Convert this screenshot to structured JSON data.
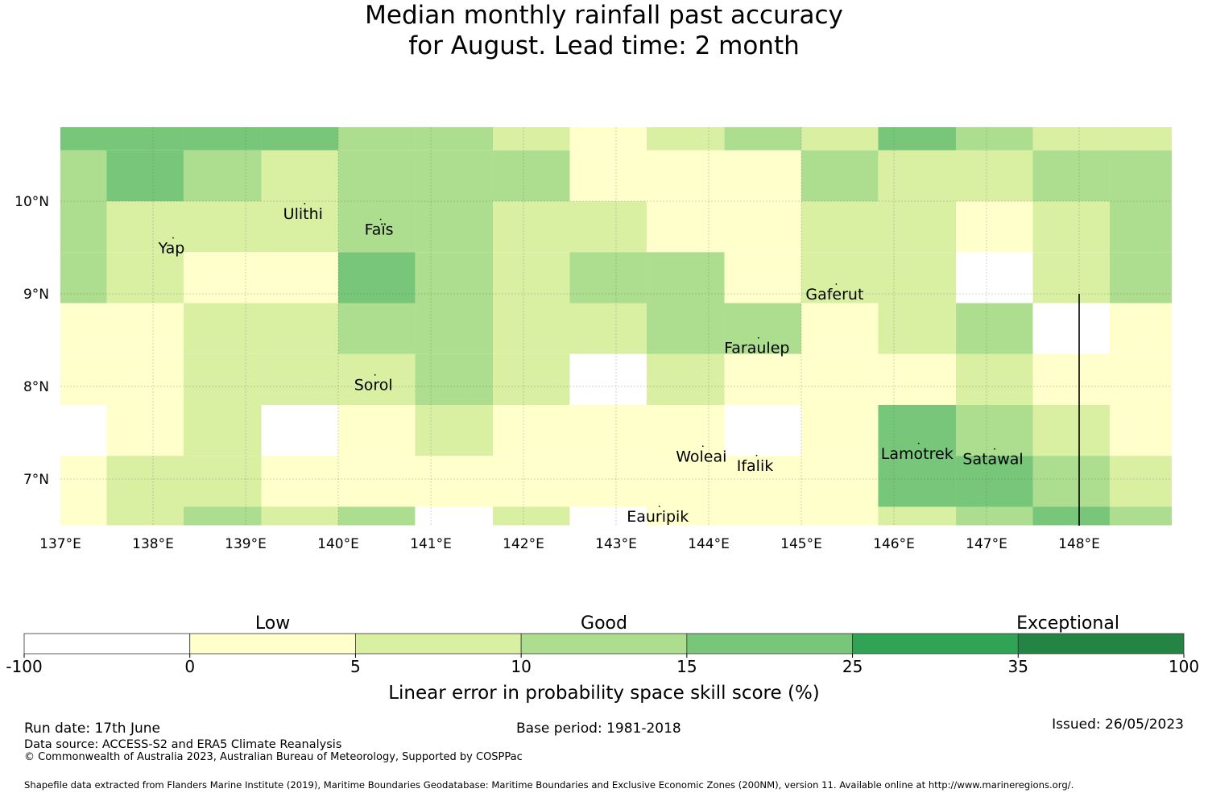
{
  "title_line1": "Median monthly rainfall past accuracy",
  "title_line2": "for August. Lead time: 2 month",
  "map": {
    "lon_range": [
      137.0,
      149.0
    ],
    "lat_range": [
      6.5,
      10.8
    ],
    "lon_ticks": [
      "137°E",
      "138°E",
      "139°E",
      "140°E",
      "141°E",
      "142°E",
      "143°E",
      "144°E",
      "145°E",
      "146°E",
      "147°E",
      "148°E"
    ],
    "lat_ticks": [
      "10°N",
      "9°N",
      "8°N",
      "7°N"
    ],
    "grid": true,
    "skill_colors": {
      "neg": "#ffffff",
      "0-5": "#ffffcc",
      "5-10": "#d9f0a3",
      "10-15": "#addd8e",
      "15-25": "#78c679",
      "25-35": "#31a354",
      "35-100": "#238443"
    },
    "grid_cells": {
      "lon_edges": [
        137.0,
        137.5,
        138.33,
        139.17,
        140.0,
        140.83,
        141.67,
        142.5,
        143.33,
        144.17,
        145.0,
        145.83,
        146.67,
        147.5,
        148.33,
        149.0
      ],
      "lat_edges": [
        10.8,
        10.55,
        10.0,
        9.45,
        8.9,
        8.35,
        7.8,
        7.25,
        6.7,
        6.5
      ],
      "rows": [
        [
          "15-25",
          "15-25",
          "15-25",
          "15-25",
          "10-15",
          "10-15",
          "5-10",
          "0-5",
          "5-10",
          "10-15",
          "5-10",
          "15-25",
          "10-15",
          "5-10",
          "5-10"
        ],
        [
          "10-15",
          "15-25",
          "10-15",
          "5-10",
          "10-15",
          "10-15",
          "10-15",
          "0-5",
          "0-5",
          "0-5",
          "10-15",
          "5-10",
          "5-10",
          "10-15",
          "10-15"
        ],
        [
          "10-15",
          "5-10",
          "5-10",
          "5-10",
          "10-15",
          "10-15",
          "5-10",
          "5-10",
          "0-5",
          "0-5",
          "5-10",
          "5-10",
          "0-5",
          "5-10",
          "10-15"
        ],
        [
          "10-15",
          "5-10",
          "0-5",
          "0-5",
          "15-25",
          "10-15",
          "5-10",
          "10-15",
          "10-15",
          "0-5",
          "5-10",
          "5-10",
          "neg",
          "5-10",
          "10-15"
        ],
        [
          "0-5",
          "0-5",
          "5-10",
          "5-10",
          "10-15",
          "10-15",
          "5-10",
          "5-10",
          "10-15",
          "10-15",
          "0-5",
          "5-10",
          "10-15",
          "neg",
          "0-5"
        ],
        [
          "0-5",
          "0-5",
          "5-10",
          "5-10",
          "5-10",
          "10-15",
          "5-10",
          "neg",
          "5-10",
          "0-5",
          "0-5",
          "0-5",
          "5-10",
          "0-5",
          "0-5"
        ],
        [
          "neg",
          "0-5",
          "5-10",
          "neg",
          "0-5",
          "5-10",
          "0-5",
          "0-5",
          "0-5",
          "neg",
          "0-5",
          "15-25",
          "10-15",
          "5-10",
          "0-5"
        ],
        [
          "0-5",
          "5-10",
          "5-10",
          "0-5",
          "0-5",
          "0-5",
          "0-5",
          "0-5",
          "0-5",
          "0-5",
          "0-5",
          "15-25",
          "15-25",
          "10-15",
          "5-10"
        ],
        [
          "0-5",
          "5-10",
          "10-15",
          "5-10",
          "10-15",
          "neg",
          "5-10",
          "neg",
          "0-5",
          "0-5",
          "0-5",
          "5-10",
          "10-15",
          "15-25",
          "10-15"
        ]
      ]
    },
    "places": [
      {
        "name": "Ulithi",
        "lon": 139.62,
        "lat": 9.87
      },
      {
        "name": "Faïs",
        "lon": 140.44,
        "lat": 9.7
      },
      {
        "name": "Yap",
        "lon": 138.2,
        "lat": 9.5
      },
      {
        "name": "Gaferut",
        "lon": 145.36,
        "lat": 9.0
      },
      {
        "name": "Faraulep",
        "lon": 144.52,
        "lat": 8.42
      },
      {
        "name": "Sorol",
        "lon": 140.38,
        "lat": 8.02
      },
      {
        "name": "Woleai",
        "lon": 143.92,
        "lat": 7.25
      },
      {
        "name": "Ifalik",
        "lon": 144.5,
        "lat": 7.15
      },
      {
        "name": "Lamotrek",
        "lon": 146.25,
        "lat": 7.28
      },
      {
        "name": "Satawal",
        "lon": 147.07,
        "lat": 7.22
      },
      {
        "name": "Eauripik",
        "lon": 143.45,
        "lat": 6.6
      }
    ],
    "boundary_line": {
      "lon": 148.0,
      "lat_from": 9.0,
      "lat_to": 6.5
    }
  },
  "legend": {
    "category_labels": [
      "Low",
      "Good",
      "Exceptional"
    ],
    "ticks": [
      "-100",
      "0",
      "5",
      "10",
      "15",
      "25",
      "35",
      "100"
    ],
    "colors": [
      "#ffffff",
      "#ffffcc",
      "#d9f0a3",
      "#addd8e",
      "#78c679",
      "#31a354",
      "#238443"
    ],
    "axis_label": "Linear error in probability space skill score (%)"
  },
  "footer": {
    "run_date": "Run date: 17th June",
    "base_period": "Base period: 1981-2018",
    "issued": "Issued: 26/05/2023",
    "data_source": "Data source: ACCESS-S2 and ERA5 Climate Reanalysis",
    "copyright": "© Commonwealth of Australia 2023, Australian Bureau of Meteorology, Supported by COSPPac",
    "shapefile": "Shapefile data extracted from Flanders Marine Institute (2019), Maritime Boundaries Geodatabase: Maritime Boundaries and Exclusive Economic Zones (200NM), version 11. Available online at http://www.marineregions.org/."
  }
}
